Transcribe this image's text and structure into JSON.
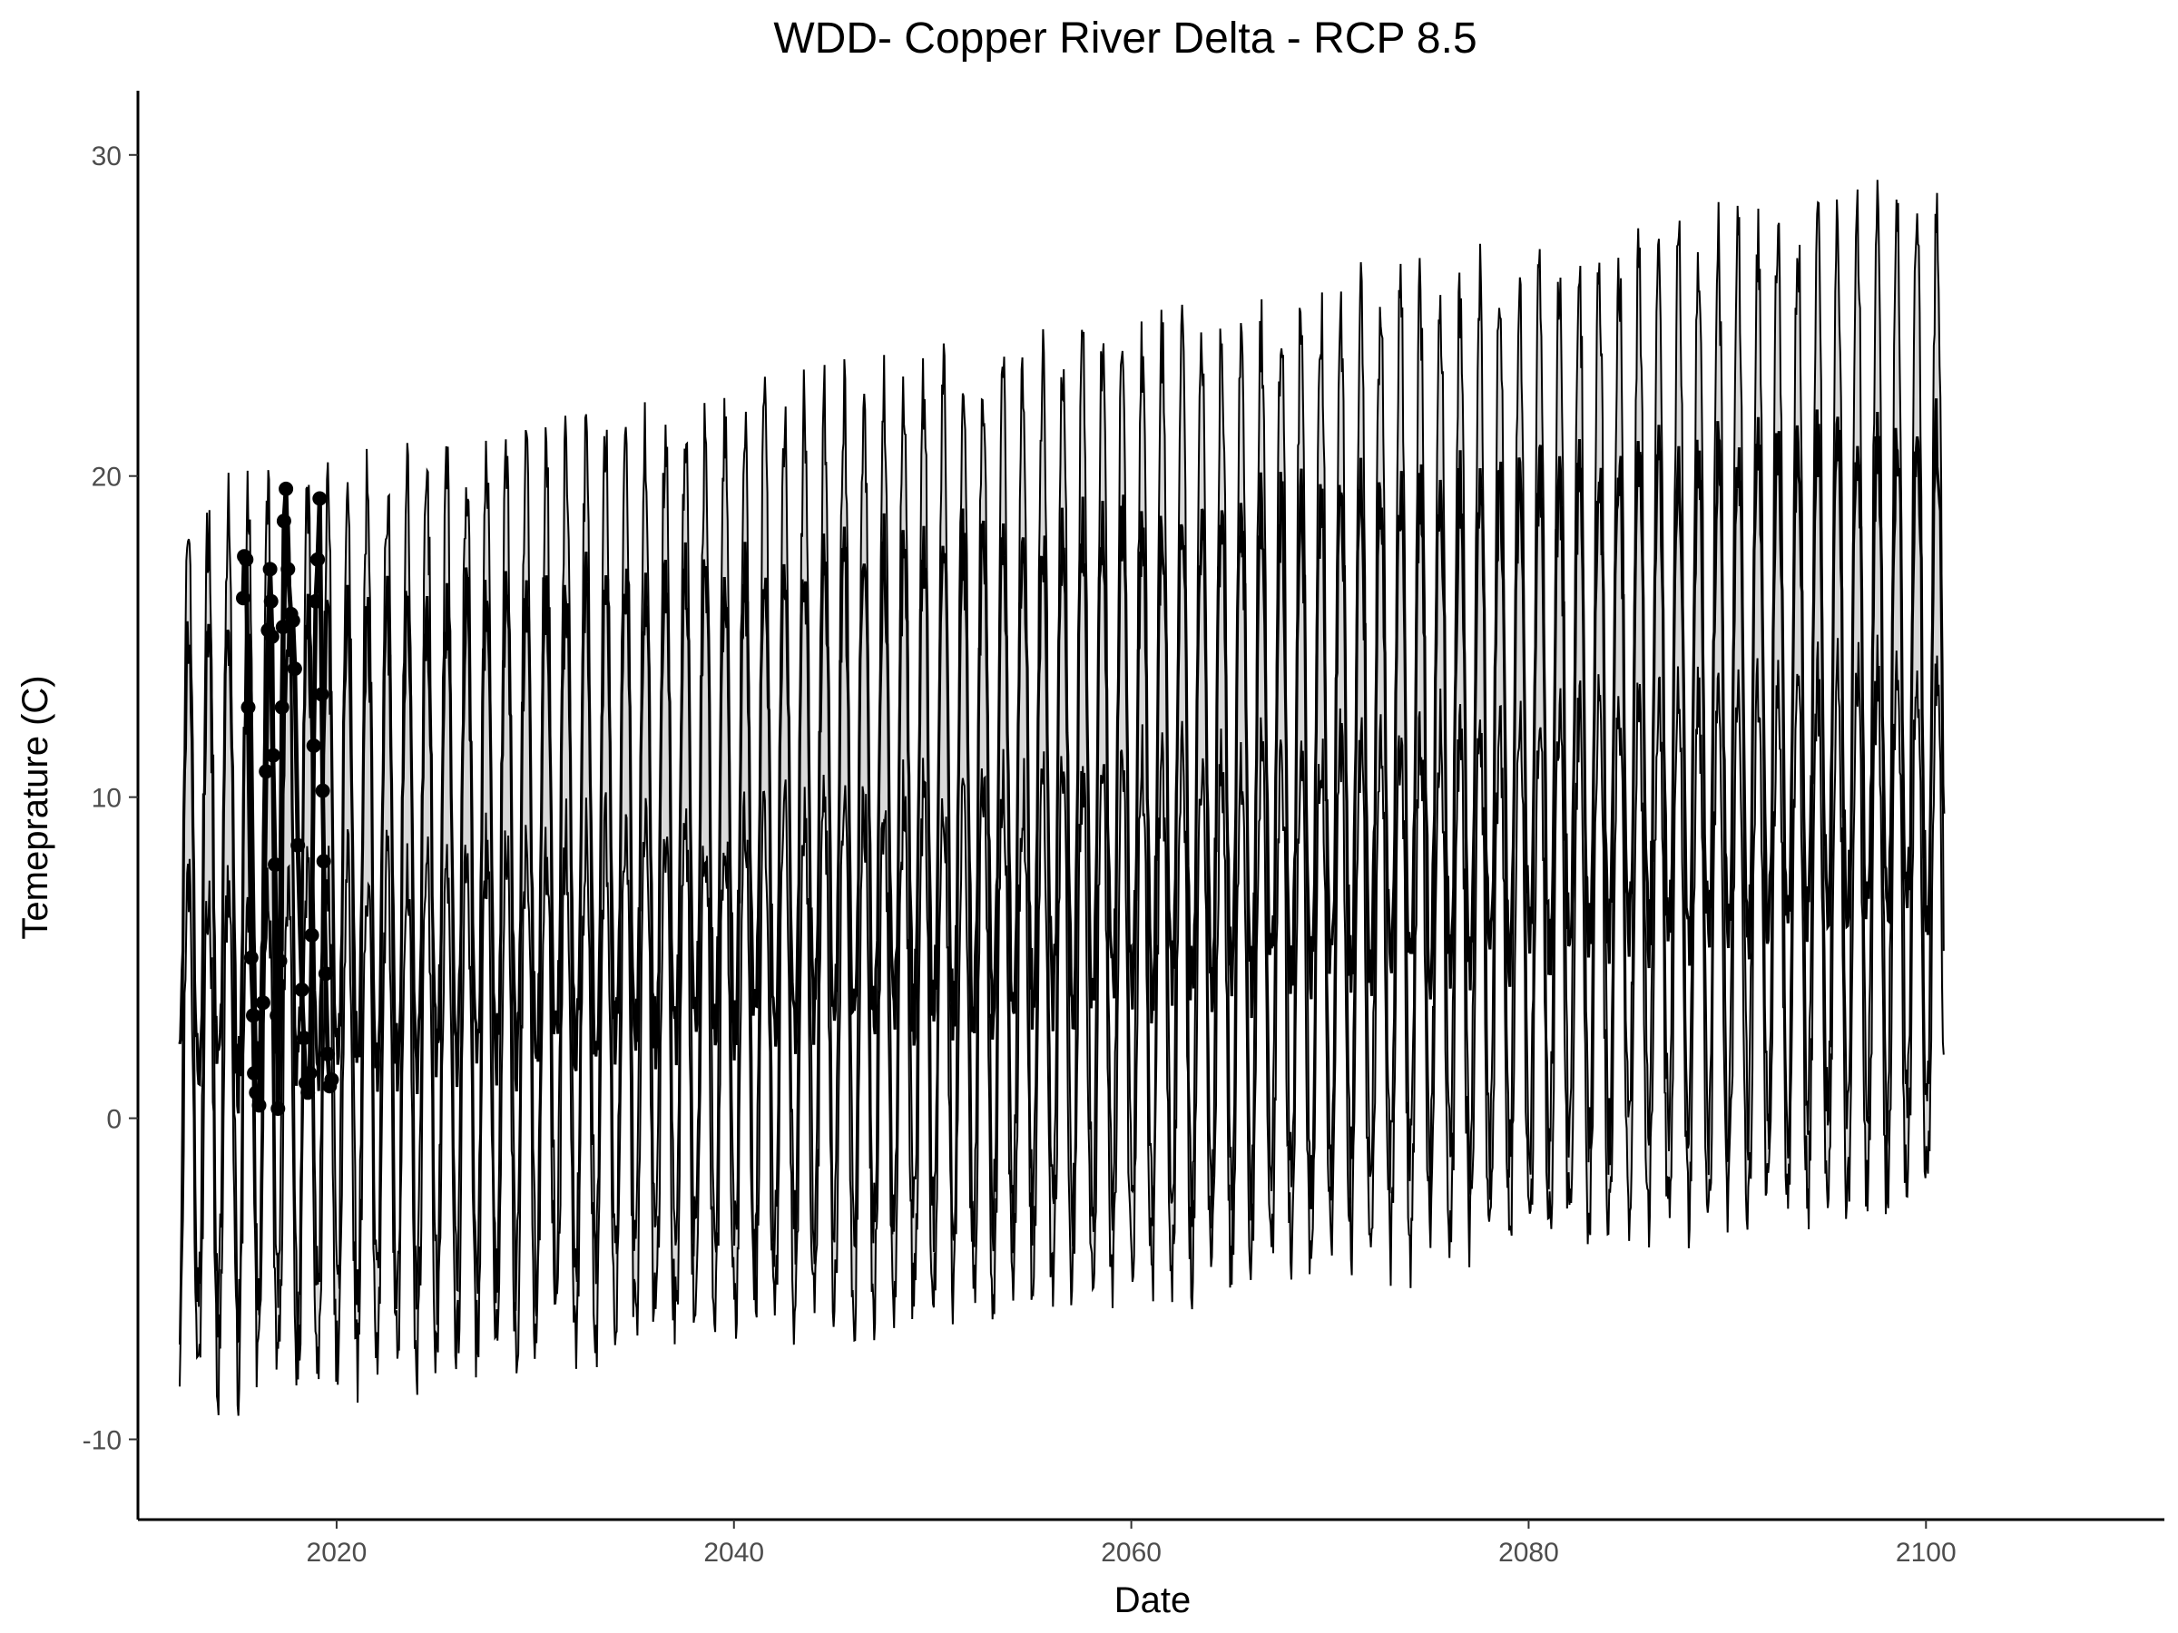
{
  "chart_data": {
    "type": "area",
    "title": "WDD- Copper River Delta - RCP 8.5",
    "xlabel": "Date",
    "ylabel": "Temeprature (C)",
    "xlim": [
      2010,
      2112
    ],
    "ylim": [
      -12.5,
      32
    ],
    "x_ticks": [
      {
        "value": 2020,
        "label": "2020"
      },
      {
        "value": 2040,
        "label": "2040"
      },
      {
        "value": 2060,
        "label": "2060"
      },
      {
        "value": 2080,
        "label": "2080"
      },
      {
        "value": 2100,
        "label": "2100"
      }
    ],
    "y_ticks": [
      {
        "value": -10,
        "label": "-10"
      },
      {
        "value": 0,
        "label": "0"
      },
      {
        "value": 10,
        "label": "10"
      },
      {
        "value": 20,
        "label": "20"
      },
      {
        "value": 30,
        "label": "30"
      }
    ],
    "grid": false,
    "legend": "none",
    "colors": {
      "band_fill": "#d9d9d9",
      "line": "#000000",
      "axis": "#000000",
      "tick_text": "#4d4d4d"
    },
    "projection": {
      "x_start": 2012.1,
      "x_end": 2100.9,
      "samples_per_year": 24,
      "upper_band_peak_start": 18.5,
      "upper_band_peak_end": 28.5,
      "upper_band_low_start": -6.0,
      "upper_band_low_end": 0.5,
      "mean_peak_start": 15.0,
      "mean_peak_end": 21.5,
      "mean_low_start": 1.0,
      "mean_low_end": 6.5,
      "lower_band_peak_start": 7.0,
      "lower_band_peak_end": 14.0,
      "lower_band_low_start": -8.0,
      "lower_band_low_end": -2.0
    },
    "observed": {
      "x": [
        2015.3,
        2015.35,
        2015.45,
        2015.55,
        2015.7,
        2015.8,
        2015.85,
        2015.95,
        2016.1,
        2016.3,
        2016.45,
        2016.55,
        2016.65,
        2016.7,
        2016.75,
        2016.8,
        2016.9,
        2017.0,
        2017.05,
        2017.15,
        2017.25,
        2017.3,
        2017.35,
        2017.45,
        2017.55,
        2017.7,
        2017.8,
        2017.9,
        2018.05,
        2018.25,
        2018.35,
        2018.45,
        2018.55,
        2018.65,
        2018.75,
        2018.85,
        2018.95,
        2019.05,
        2019.15,
        2019.25,
        2019.3,
        2019.35,
        2019.45,
        2019.55,
        2019.65,
        2019.75
      ],
      "y": [
        16.2,
        17.5,
        17.4,
        12.8,
        5.0,
        3.2,
        1.4,
        0.8,
        0.4,
        3.6,
        10.8,
        15.2,
        17.1,
        16.1,
        15.0,
        11.3,
        7.9,
        3.2,
        0.3,
        4.9,
        12.8,
        15.3,
        18.6,
        19.6,
        17.1,
        15.7,
        15.5,
        14.0,
        8.5,
        4.0,
        2.5,
        1.1,
        0.8,
        1.4,
        5.7,
        11.6,
        16.1,
        17.4,
        19.3,
        13.2,
        10.2,
        8.0,
        4.5,
        2.0,
        1.0,
        1.2
      ]
    }
  }
}
